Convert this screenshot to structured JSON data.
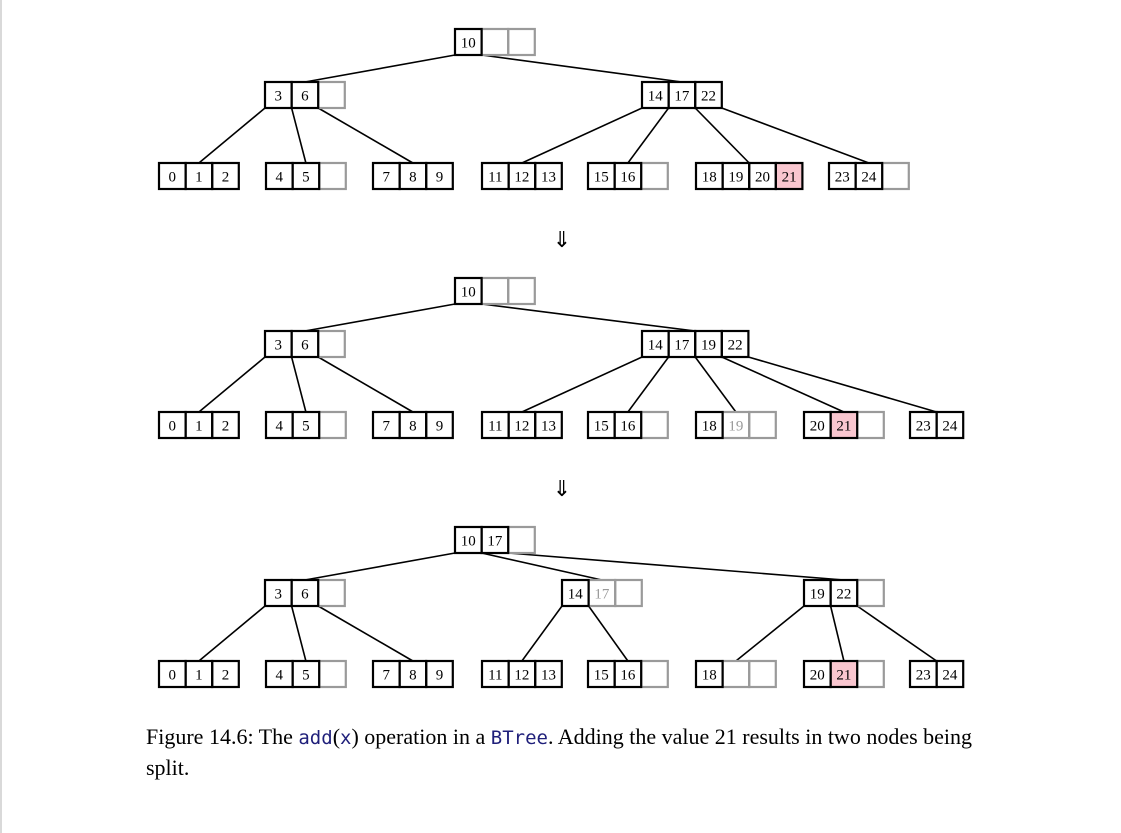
{
  "diagram": {
    "step_arrow": "⇓",
    "colors": {
      "highlight": "#f9c6cf",
      "ghost_border": "#9a9a9a",
      "ghost_text": "#9a9a9a",
      "edge": "#000000"
    },
    "panels": [
      {
        "levels": [
          [
            {
              "id": "r",
              "cells": [
                {
                  "v": "10"
                },
                {
                  "v": ""
                },
                {
                  "v": ""
                }
              ]
            }
          ],
          [
            {
              "id": "a",
              "cells": [
                {
                  "v": "3"
                },
                {
                  "v": "6"
                },
                {
                  "v": ""
                }
              ]
            },
            {
              "id": "b",
              "cells": [
                {
                  "v": "14"
                },
                {
                  "v": "17"
                },
                {
                  "v": "22"
                }
              ]
            }
          ],
          [
            {
              "id": "l0",
              "cells": [
                {
                  "v": "0"
                },
                {
                  "v": "1"
                },
                {
                  "v": "2"
                }
              ]
            },
            {
              "id": "l1",
              "cells": [
                {
                  "v": "4"
                },
                {
                  "v": "5"
                },
                {
                  "v": ""
                }
              ]
            },
            {
              "id": "l2",
              "cells": [
                {
                  "v": "7"
                },
                {
                  "v": "8"
                },
                {
                  "v": "9"
                }
              ]
            },
            {
              "id": "l3",
              "cells": [
                {
                  "v": "11"
                },
                {
                  "v": "12"
                },
                {
                  "v": "13"
                }
              ]
            },
            {
              "id": "l4",
              "cells": [
                {
                  "v": "15"
                },
                {
                  "v": "16"
                },
                {
                  "v": ""
                }
              ]
            },
            {
              "id": "l5",
              "cells": [
                {
                  "v": "18"
                },
                {
                  "v": "19"
                },
                {
                  "v": "20"
                },
                {
                  "v": "21",
                  "hl": true
                }
              ]
            },
            {
              "id": "l6",
              "cells": [
                {
                  "v": "23"
                },
                {
                  "v": "24"
                },
                {
                  "v": ""
                }
              ]
            }
          ]
        ],
        "edges": [
          [
            "r",
            0,
            "a"
          ],
          [
            "r",
            1,
            "b"
          ],
          [
            "a",
            0,
            "l0"
          ],
          [
            "a",
            1,
            "l1"
          ],
          [
            "a",
            2,
            "l2"
          ],
          [
            "b",
            0,
            "l3"
          ],
          [
            "b",
            1,
            "l4"
          ],
          [
            "b",
            2,
            "l5"
          ],
          [
            "b",
            3,
            "l6"
          ]
        ]
      },
      {
        "levels": [
          [
            {
              "id": "r",
              "cells": [
                {
                  "v": "10"
                },
                {
                  "v": ""
                },
                {
                  "v": ""
                }
              ]
            }
          ],
          [
            {
              "id": "a",
              "cells": [
                {
                  "v": "3"
                },
                {
                  "v": "6"
                },
                {
                  "v": ""
                }
              ]
            },
            {
              "id": "b",
              "cells": [
                {
                  "v": "14"
                },
                {
                  "v": "17"
                },
                {
                  "v": "19"
                },
                {
                  "v": "22"
                }
              ]
            }
          ],
          [
            {
              "id": "l0",
              "cells": [
                {
                  "v": "0"
                },
                {
                  "v": "1"
                },
                {
                  "v": "2"
                }
              ]
            },
            {
              "id": "l1",
              "cells": [
                {
                  "v": "4"
                },
                {
                  "v": "5"
                },
                {
                  "v": ""
                }
              ]
            },
            {
              "id": "l2",
              "cells": [
                {
                  "v": "7"
                },
                {
                  "v": "8"
                },
                {
                  "v": "9"
                }
              ]
            },
            {
              "id": "l3",
              "cells": [
                {
                  "v": "11"
                },
                {
                  "v": "12"
                },
                {
                  "v": "13"
                }
              ]
            },
            {
              "id": "l4",
              "cells": [
                {
                  "v": "15"
                },
                {
                  "v": "16"
                },
                {
                  "v": ""
                }
              ]
            },
            {
              "id": "l5",
              "cells": [
                {
                  "v": "18"
                },
                {
                  "v": "19",
                  "ghost": true
                },
                {
                  "v": ""
                }
              ]
            },
            {
              "id": "l6",
              "cells": [
                {
                  "v": "20"
                },
                {
                  "v": "21",
                  "hl": true
                },
                {
                  "v": ""
                }
              ]
            },
            {
              "id": "l7",
              "cells": [
                {
                  "v": "23"
                },
                {
                  "v": "24"
                }
              ]
            }
          ]
        ],
        "edges": [
          [
            "r",
            0,
            "a"
          ],
          [
            "r",
            1,
            "b"
          ],
          [
            "a",
            0,
            "l0"
          ],
          [
            "a",
            1,
            "l1"
          ],
          [
            "a",
            2,
            "l2"
          ],
          [
            "b",
            0,
            "l3"
          ],
          [
            "b",
            1,
            "l4"
          ],
          [
            "b",
            2,
            "l5"
          ],
          [
            "b",
            3,
            "l6"
          ],
          [
            "b",
            4,
            "l7"
          ]
        ]
      },
      {
        "levels": [
          [
            {
              "id": "r",
              "cells": [
                {
                  "v": "10"
                },
                {
                  "v": "17"
                },
                {
                  "v": ""
                }
              ]
            }
          ],
          [
            {
              "id": "a",
              "cells": [
                {
                  "v": "3"
                },
                {
                  "v": "6"
                },
                {
                  "v": ""
                }
              ]
            },
            {
              "id": "b",
              "cells": [
                {
                  "v": "14"
                },
                {
                  "v": "17",
                  "ghost": true
                },
                {
                  "v": ""
                }
              ]
            },
            {
              "id": "c",
              "cells": [
                {
                  "v": "19"
                },
                {
                  "v": "22"
                },
                {
                  "v": ""
                }
              ]
            }
          ],
          [
            {
              "id": "l0",
              "cells": [
                {
                  "v": "0"
                },
                {
                  "v": "1"
                },
                {
                  "v": "2"
                }
              ]
            },
            {
              "id": "l1",
              "cells": [
                {
                  "v": "4"
                },
                {
                  "v": "5"
                },
                {
                  "v": ""
                }
              ]
            },
            {
              "id": "l2",
              "cells": [
                {
                  "v": "7"
                },
                {
                  "v": "8"
                },
                {
                  "v": "9"
                }
              ]
            },
            {
              "id": "l3",
              "cells": [
                {
                  "v": "11"
                },
                {
                  "v": "12"
                },
                {
                  "v": "13"
                }
              ]
            },
            {
              "id": "l4",
              "cells": [
                {
                  "v": "15"
                },
                {
                  "v": "16"
                },
                {
                  "v": ""
                }
              ]
            },
            {
              "id": "l5",
              "cells": [
                {
                  "v": "18"
                },
                {
                  "v": ""
                },
                {
                  "v": ""
                }
              ]
            },
            {
              "id": "l6",
              "cells": [
                {
                  "v": "20"
                },
                {
                  "v": "21",
                  "hl": true
                },
                {
                  "v": ""
                }
              ]
            },
            {
              "id": "l7",
              "cells": [
                {
                  "v": "23"
                },
                {
                  "v": "24"
                }
              ]
            }
          ]
        ],
        "edges": [
          [
            "r",
            0,
            "a"
          ],
          [
            "r",
            1,
            "b"
          ],
          [
            "r",
            2,
            "c"
          ],
          [
            "a",
            0,
            "l0"
          ],
          [
            "a",
            1,
            "l1"
          ],
          [
            "a",
            2,
            "l2"
          ],
          [
            "b",
            0,
            "l3"
          ],
          [
            "b",
            1,
            "l4"
          ],
          [
            "c",
            0,
            "l5"
          ],
          [
            "c",
            1,
            "l6"
          ],
          [
            "c",
            2,
            "l7"
          ]
        ]
      }
    ]
  },
  "caption": {
    "prefix": "Figure 14.6: The ",
    "method": "add",
    "open_paren": "(",
    "arg": "x",
    "close_paren": ")",
    "middle": " operation in a ",
    "class_name": "BTree",
    "suffix": ". Adding the value 21 results in two nodes being split."
  }
}
